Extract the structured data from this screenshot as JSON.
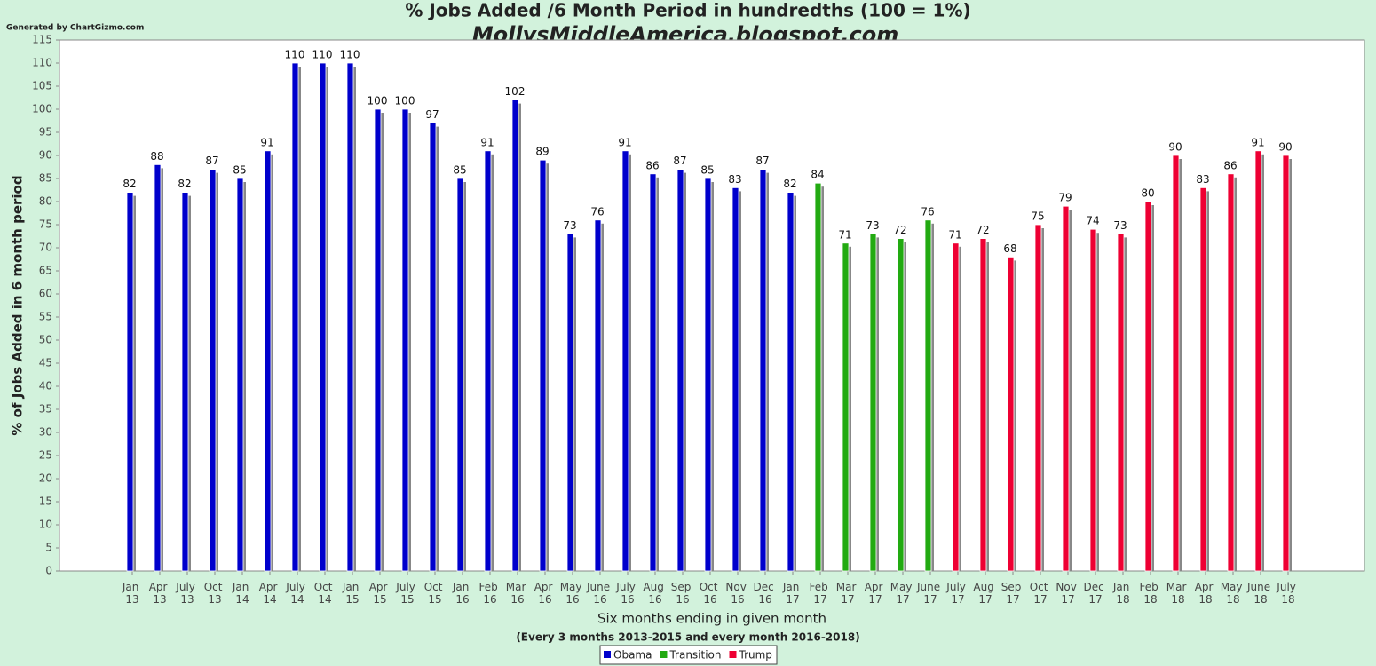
{
  "source": "Generated by ChartGizmo.com",
  "chart_data": {
    "type": "bar",
    "title": "% Jobs Added /6 Month Period in hundredths (100 = 1%)",
    "subtitle": "MollysMiddleAmerica.blogspot.com",
    "x_label": "Six months ending in given month",
    "x_note": "(Every 3 months 2013-2015 and every month 2016-2018)",
    "y_label": "% of Jobs Added in 6 month period",
    "categories": [
      "Jan 13",
      "Apr 13",
      "July 13",
      "Oct 13",
      "Jan 14",
      "Apr 14",
      "July 14",
      "Oct 14",
      "Jan 15",
      "Apr 15",
      "July 15",
      "Oct 15",
      "Jan 16",
      "Feb 16",
      "Mar 16",
      "Apr 16",
      "May 16",
      "June 16",
      "July 16",
      "Aug 16",
      "Sep 16",
      "Oct 16",
      "Nov 16",
      "Dec 16",
      "Jan 17",
      "Feb 17",
      "Mar 17",
      "Apr 17",
      "May 17",
      "June 17",
      "July 17",
      "Aug 17",
      "Sep 17",
      "Oct 17",
      "Nov 17",
      "Dec 17",
      "Jan 18",
      "Feb 18",
      "Mar 18",
      "Apr 18",
      "May 18",
      "June 18",
      "July 18"
    ],
    "series": [
      {
        "name": "Obama",
        "color": "#0000cc",
        "values": [
          82,
          88,
          82,
          87,
          85,
          91,
          110,
          110,
          110,
          100,
          100,
          97,
          85,
          91,
          102,
          89,
          73,
          76,
          91,
          86,
          87,
          85,
          83,
          87,
          82,
          null,
          null,
          null,
          null,
          null,
          null,
          null,
          null,
          null,
          null,
          null,
          null,
          null,
          null,
          null,
          null,
          null,
          null
        ]
      },
      {
        "name": "Transition",
        "color": "#22aa11",
        "values": [
          null,
          null,
          null,
          null,
          null,
          null,
          null,
          null,
          null,
          null,
          null,
          null,
          null,
          null,
          null,
          null,
          null,
          null,
          null,
          null,
          null,
          null,
          null,
          null,
          null,
          84,
          71,
          73,
          72,
          76,
          null,
          null,
          null,
          null,
          null,
          null,
          null,
          null,
          null,
          null,
          null,
          null,
          null
        ]
      },
      {
        "name": "Trump",
        "color": "#ee0033",
        "values": [
          null,
          null,
          null,
          null,
          null,
          null,
          null,
          null,
          null,
          null,
          null,
          null,
          null,
          null,
          null,
          null,
          null,
          null,
          null,
          null,
          null,
          null,
          null,
          null,
          null,
          null,
          null,
          null,
          null,
          null,
          71,
          72,
          68,
          75,
          79,
          74,
          73,
          80,
          90,
          83,
          86,
          91,
          90
        ]
      }
    ],
    "ylim": [
      0,
      115
    ],
    "yticks": [
      0,
      5,
      10,
      15,
      20,
      25,
      30,
      35,
      40,
      45,
      50,
      55,
      60,
      65,
      70,
      75,
      80,
      85,
      90,
      95,
      100,
      105,
      110,
      115
    ],
    "legend": "bottom"
  }
}
